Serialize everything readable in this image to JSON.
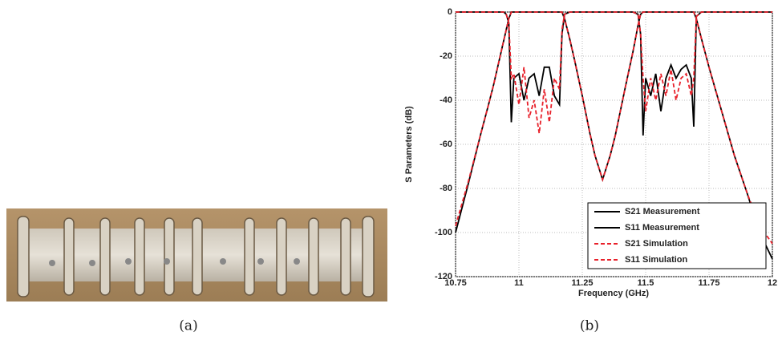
{
  "chart_data": {
    "type": "line",
    "xlabel": "Frequency (GHz)",
    "ylabel": "S Parameters (dB)",
    "x": [
      10.75,
      10.8,
      10.85,
      10.88,
      10.9,
      10.92,
      10.94,
      10.95,
      10.96,
      10.97,
      10.98,
      11.0,
      11.02,
      11.04,
      11.06,
      11.08,
      11.1,
      11.12,
      11.14,
      11.16,
      11.17,
      11.18,
      11.2,
      11.22,
      11.25,
      11.28,
      11.3,
      11.33,
      11.36,
      11.38,
      11.4,
      11.42,
      11.45,
      11.47,
      11.48,
      11.49,
      11.5,
      11.52,
      11.54,
      11.56,
      11.58,
      11.6,
      11.62,
      11.64,
      11.66,
      11.68,
      11.69,
      11.7,
      11.72,
      11.75,
      11.8,
      11.85,
      11.9,
      11.95,
      12.0
    ],
    "series": [
      {
        "name": "S21 Measurement",
        "color": "#000000",
        "dashed": false,
        "values": [
          -100,
          -78,
          -55,
          -42,
          -33,
          -23,
          -13,
          -8,
          -3,
          0,
          0,
          0,
          0,
          0,
          0,
          0,
          0,
          0,
          0,
          0,
          0,
          -3,
          -12,
          -22,
          -38,
          -55,
          -65,
          -76,
          -65,
          -56,
          -45,
          -34,
          -18,
          -6,
          -1,
          0,
          0,
          0,
          0,
          0,
          0,
          0,
          0,
          0,
          0,
          0,
          0,
          -3,
          -12,
          -25,
          -45,
          -65,
          -82,
          -100,
          -112
        ]
      },
      {
        "name": "S11 Measurement",
        "color": "#000000",
        "dashed": false,
        "values": [
          0,
          0,
          0,
          0,
          0,
          0,
          0,
          -1,
          -5,
          -50,
          -30,
          -28,
          -40,
          -30,
          -28,
          -38,
          -25,
          -25,
          -38,
          -42,
          -10,
          -1,
          0,
          0,
          0,
          0,
          0,
          0,
          0,
          0,
          0,
          0,
          0,
          -1,
          -10,
          -56,
          -30,
          -38,
          -28,
          -45,
          -30,
          -24,
          -30,
          -26,
          -24,
          -30,
          -52,
          -2,
          0,
          0,
          0,
          0,
          0,
          0,
          0
        ]
      },
      {
        "name": "S21 Simulation",
        "color": "#e8202a",
        "dashed": true,
        "values": [
          -97,
          -77,
          -55,
          -42,
          -33,
          -23,
          -13,
          -8,
          -3,
          0,
          0,
          0,
          0,
          0,
          0,
          0,
          0,
          0,
          0,
          0,
          0,
          -3,
          -12,
          -22,
          -38,
          -55,
          -65,
          -76,
          -65,
          -56,
          -45,
          -34,
          -18,
          -6,
          -1,
          0,
          0,
          0,
          0,
          0,
          0,
          0,
          0,
          0,
          0,
          0,
          0,
          -3,
          -12,
          -25,
          -45,
          -65,
          -82,
          -97,
          -105
        ]
      },
      {
        "name": "S11 Simulation",
        "color": "#e8202a",
        "dashed": true,
        "values": [
          0,
          0,
          0,
          0,
          0,
          0,
          0,
          -1,
          -5,
          -30,
          -28,
          -42,
          -25,
          -48,
          -40,
          -55,
          -35,
          -50,
          -30,
          -35,
          -8,
          -1,
          0,
          0,
          0,
          0,
          0,
          0,
          0,
          0,
          0,
          0,
          0,
          -1,
          -10,
          -30,
          -45,
          -30,
          -40,
          -28,
          -38,
          -26,
          -40,
          -30,
          -28,
          -38,
          -30,
          -2,
          0,
          0,
          0,
          0,
          0,
          0,
          0
        ]
      }
    ],
    "xlim": [
      10.75,
      12
    ],
    "xticks": [
      10.75,
      11,
      11.25,
      11.5,
      11.75,
      12
    ],
    "ylim": [
      -120,
      0
    ],
    "yticks": [
      0,
      -20,
      -40,
      -60,
      -80,
      -100,
      -120
    ],
    "grid": true,
    "legend": "lower right"
  },
  "captions": [
    "(a)",
    "(b)"
  ]
}
